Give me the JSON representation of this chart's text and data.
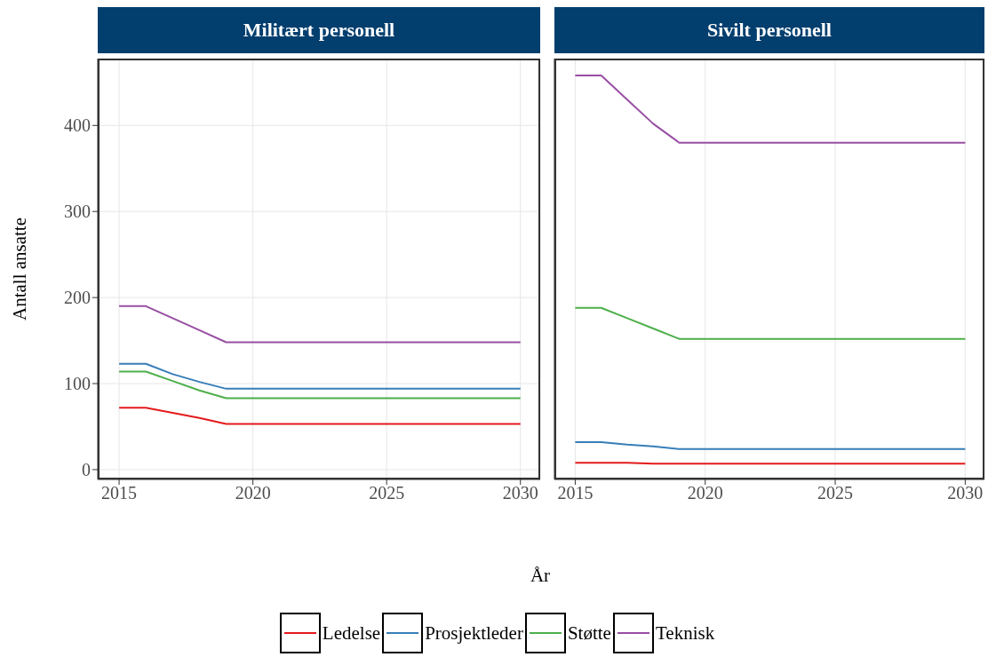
{
  "chart_data": [
    {
      "type": "line",
      "title": "Militært personell",
      "ylabel": "Antall ansatte",
      "xlabel": "År",
      "x": [
        2015,
        2016,
        2017,
        2018,
        2019,
        2030
      ],
      "xlim": [
        2014.2,
        2030.74
      ],
      "ylim": [
        -11.4,
        477.7
      ],
      "xticks": [
        2015,
        2020,
        2025,
        2030
      ],
      "yticks": [
        0,
        100,
        200,
        300,
        400
      ],
      "grid": true,
      "legend": "bottom",
      "series": [
        {
          "name": "Ledelse",
          "color": "#e41a1c",
          "values": [
            72,
            72,
            66,
            60,
            53,
            53
          ]
        },
        {
          "name": "Prosjektleder",
          "color": "#377eb8",
          "values": [
            123,
            123,
            111,
            102,
            94,
            94
          ]
        },
        {
          "name": "Støtte",
          "color": "#4daf4a",
          "values": [
            114,
            114,
            103,
            92,
            83,
            83
          ]
        },
        {
          "name": "Teknisk",
          "color": "#984ea3",
          "values": [
            190,
            190,
            176,
            162,
            148,
            148
          ]
        }
      ]
    },
    {
      "type": "line",
      "title": "Sivilt personell",
      "x": [
        2015,
        2016,
        2017,
        2018,
        2019,
        2030
      ],
      "xlim": [
        2014.2,
        2030.74
      ],
      "ylim": [
        -11.4,
        477.7
      ],
      "xticks": [
        2015,
        2020,
        2025,
        2030
      ],
      "yticks": [
        0,
        100,
        200,
        300,
        400
      ],
      "grid": true,
      "tick_labels": "x",
      "series": [
        {
          "name": "Ledelse",
          "color": "#e41a1c",
          "values": [
            8,
            8,
            8,
            7,
            7,
            7
          ]
        },
        {
          "name": "Prosjektleder",
          "color": "#377eb8",
          "values": [
            32,
            32,
            29,
            27,
            24,
            24
          ]
        },
        {
          "name": "Støtte",
          "color": "#4daf4a",
          "values": [
            188,
            188,
            176,
            164,
            152,
            152
          ]
        },
        {
          "name": "Teknisk",
          "color": "#984ea3",
          "values": [
            458,
            458,
            430,
            402,
            380,
            380
          ]
        }
      ]
    }
  ]
}
